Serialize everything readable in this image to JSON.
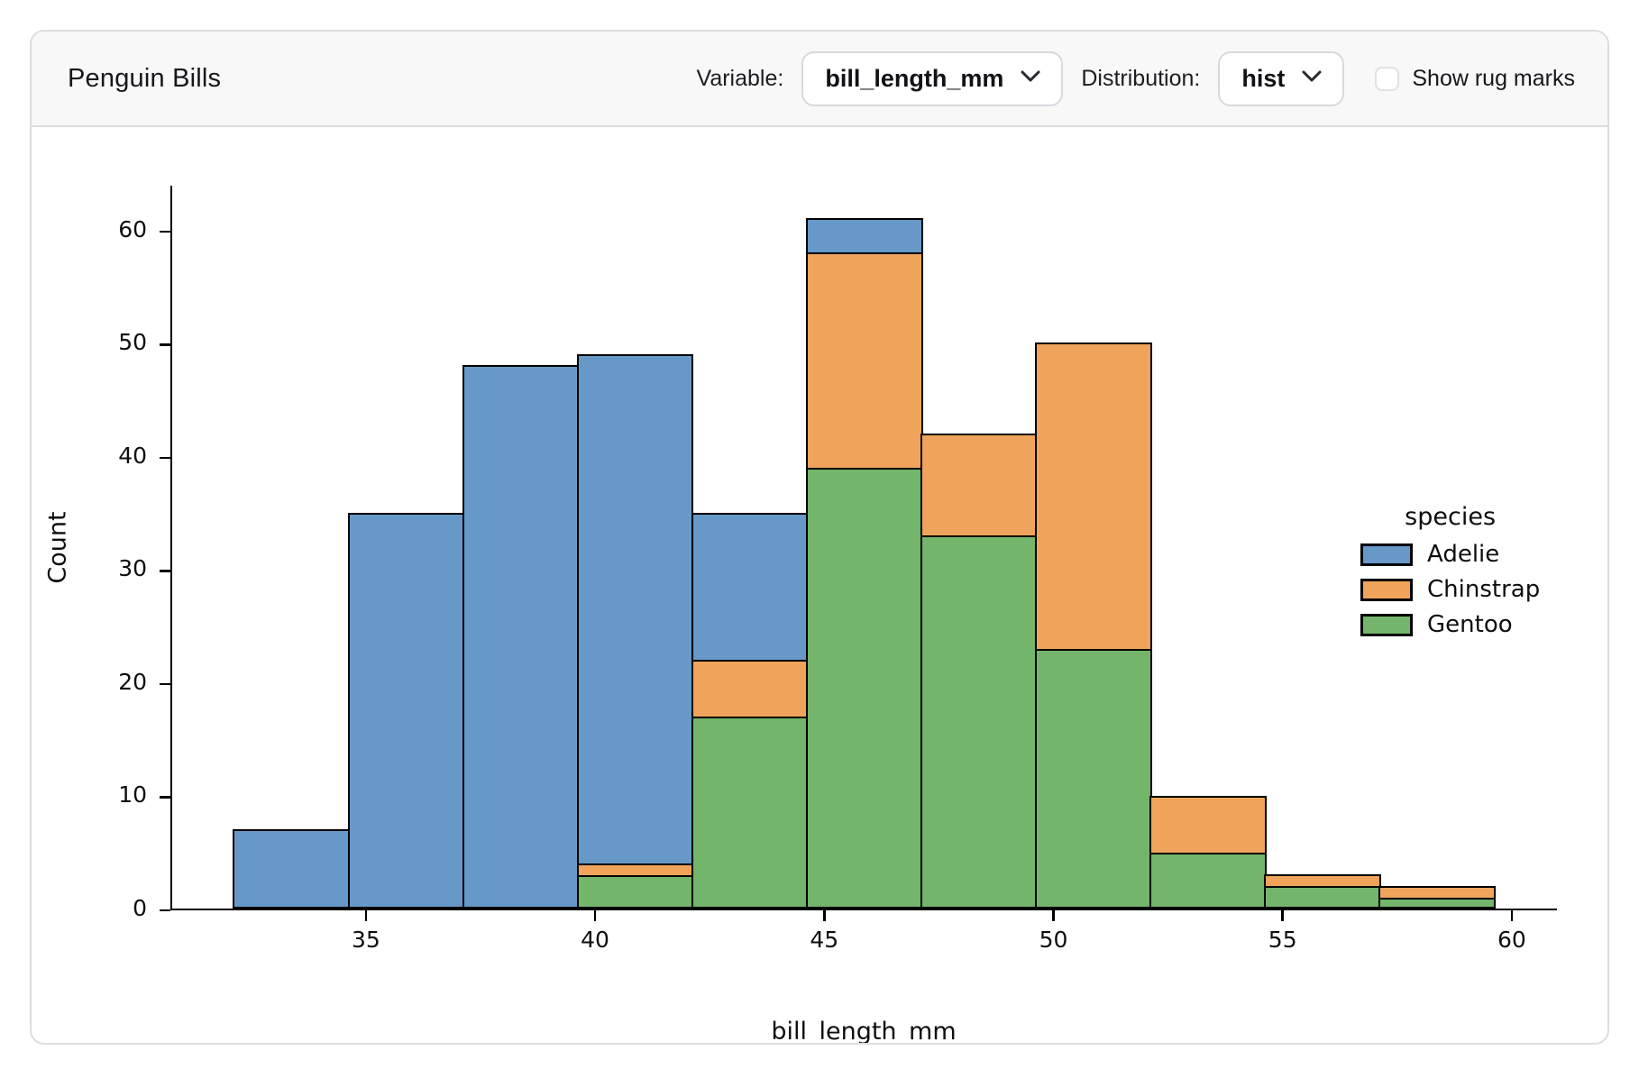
{
  "header": {
    "title": "Penguin Bills",
    "variable_label": "Variable:",
    "variable_value": "bill_length_mm",
    "distribution_label": "Distribution:",
    "distribution_value": "hist",
    "rug_label": "Show rug marks",
    "rug_checked": false
  },
  "chart_data": {
    "type": "bar",
    "subtype": "stacked-histogram",
    "title": "",
    "xlabel": "bill_length_mm",
    "ylabel": "Count",
    "bin_edges": [
      32.1,
      34.6,
      37.1,
      39.6,
      42.1,
      44.6,
      47.1,
      49.6,
      52.1,
      54.6,
      57.1,
      59.6
    ],
    "series": [
      {
        "name": "Adelie",
        "color": "#6699c7",
        "values": [
          7,
          35,
          48,
          45,
          13,
          3,
          0,
          0,
          0,
          0,
          0
        ]
      },
      {
        "name": "Chinstrap",
        "color": "#f0a45b",
        "values": [
          0,
          0,
          0,
          1,
          5,
          19,
          9,
          27,
          5,
          1,
          1
        ]
      },
      {
        "name": "Gentoo",
        "color": "#73b56a",
        "values": [
          0,
          0,
          0,
          3,
          17,
          39,
          33,
          23,
          5,
          2,
          1
        ]
      }
    ],
    "stack_order_bottom_to_top": [
      "Gentoo",
      "Chinstrap",
      "Adelie"
    ],
    "bin_totals": [
      7,
      35,
      48,
      49,
      35,
      61,
      42,
      50,
      10,
      3,
      2
    ],
    "edge_color": "#000000",
    "xlim": [
      30.725,
      60.975
    ],
    "ylim": [
      0,
      64.05
    ],
    "xticks": [
      35,
      40,
      45,
      50,
      55,
      60
    ],
    "yticks": [
      0,
      10,
      20,
      30,
      40,
      50,
      60
    ],
    "grid": false,
    "legend": {
      "title": "species",
      "position": "center-right"
    }
  }
}
